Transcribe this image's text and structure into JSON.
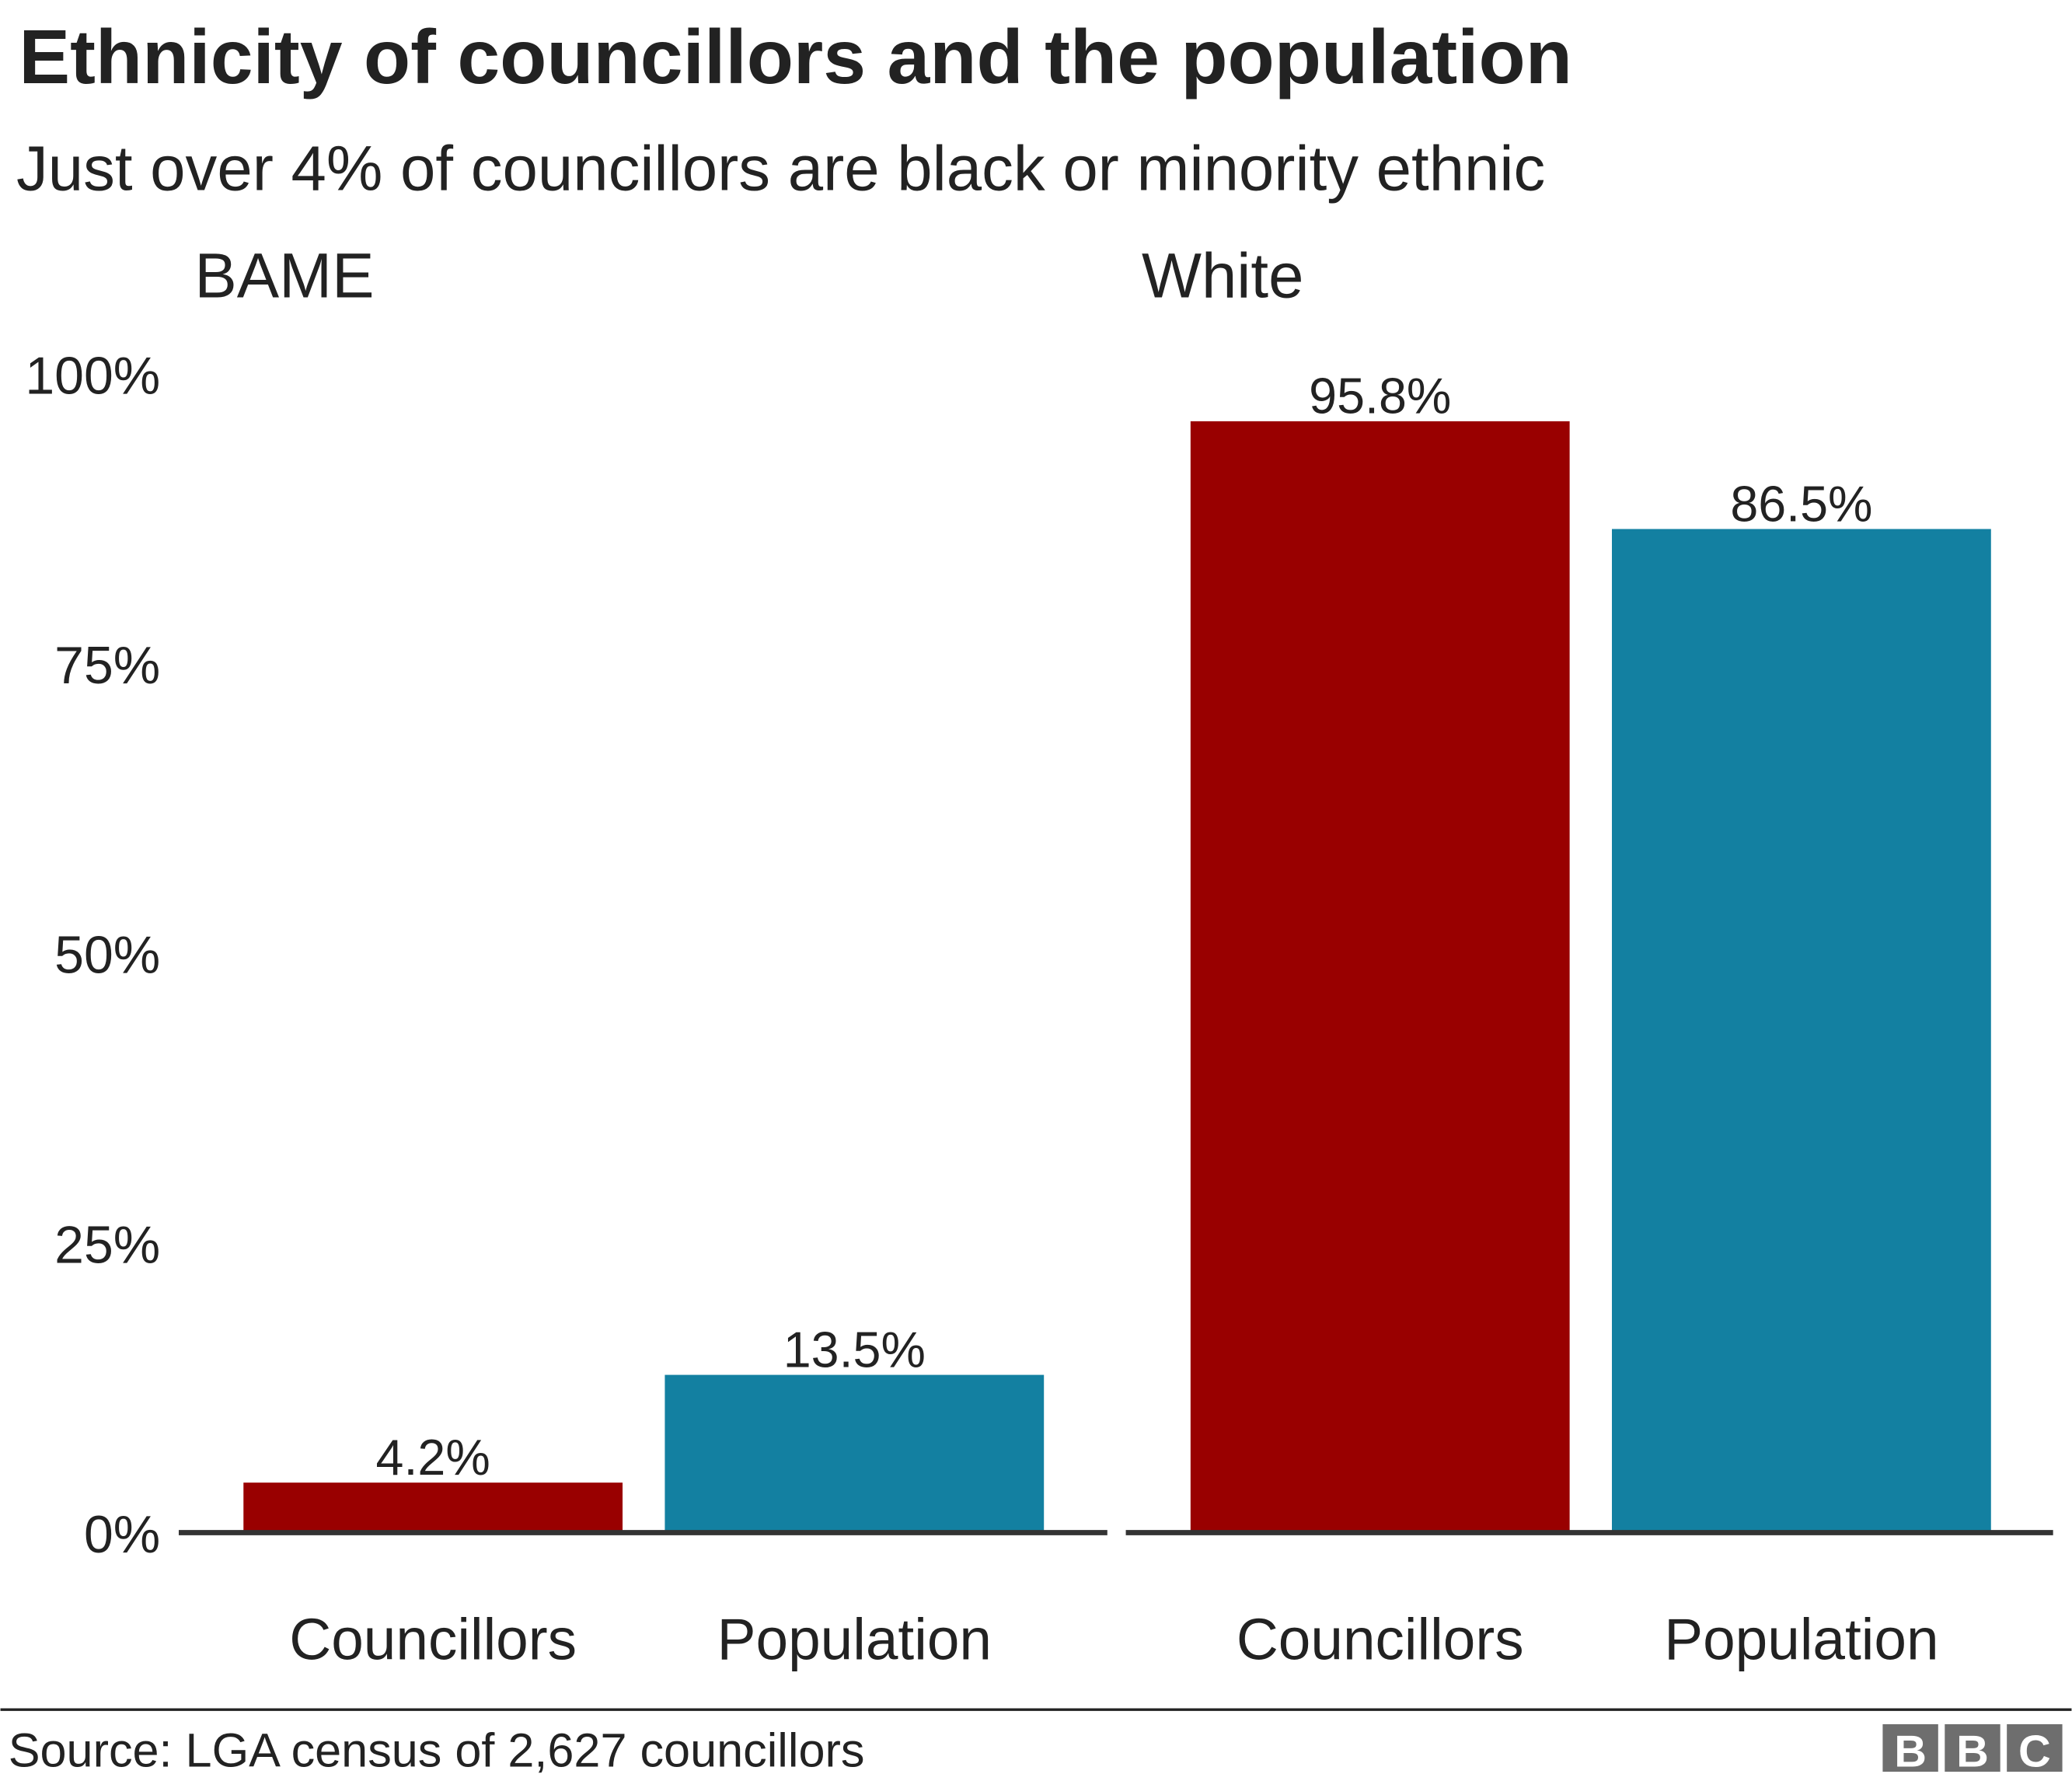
{
  "chart_data": {
    "type": "bar",
    "title": "Ethnicity of councillors and the population",
    "subtitle": "Just over 4% of councillors are black or minority ethnic",
    "source": "Source: LGA census of 2,627 councillors",
    "logo": "BBC",
    "facets": [
      "BAME",
      "White"
    ],
    "categories": [
      "Councillors",
      "Population"
    ],
    "series": [
      {
        "facet": "BAME",
        "values": [
          4.2,
          13.5
        ],
        "labels": [
          "4.2%",
          "13.5%"
        ]
      },
      {
        "facet": "White",
        "values": [
          95.8,
          86.5
        ],
        "labels": [
          "95.8%",
          "86.5%"
        ]
      }
    ],
    "colors": {
      "Councillors": "#990000",
      "Population": "#1380A1"
    },
    "ylim": [
      0,
      100
    ],
    "yticks": [
      "0%",
      "25%",
      "50%",
      "75%",
      "100%"
    ],
    "ytick_values": [
      0,
      25,
      50,
      75,
      100
    ],
    "grid": false,
    "xlabel": "",
    "ylabel": ""
  }
}
